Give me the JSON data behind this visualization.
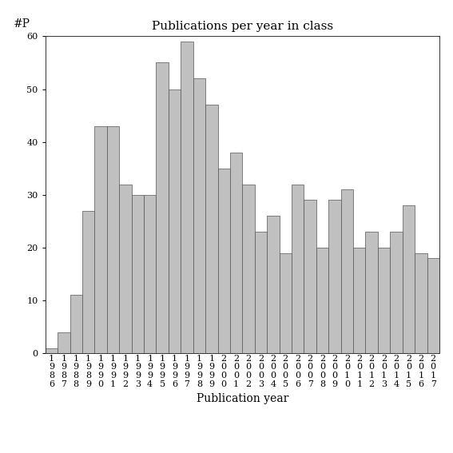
{
  "title": "Publications per year in class",
  "xlabel": "Publication year",
  "ylabel": "#P",
  "years": [
    1986,
    1987,
    1988,
    1989,
    1990,
    1991,
    1992,
    1993,
    1994,
    1995,
    1996,
    1997,
    1998,
    1999,
    2000,
    2001,
    2002,
    2003,
    2004,
    2005,
    2006,
    2007,
    2008,
    2009,
    2010,
    2011,
    2012,
    2013,
    2014,
    2015,
    2016,
    2017
  ],
  "values": [
    1,
    4,
    11,
    27,
    43,
    43,
    32,
    30,
    30,
    55,
    50,
    59,
    52,
    47,
    35,
    38,
    32,
    23,
    26,
    19,
    32,
    29,
    20,
    29,
    31,
    20,
    23,
    20,
    23,
    28,
    19,
    18
  ],
  "bar_color": "#c0c0c0",
  "bar_edgecolor": "#555555",
  "ylim": [
    0,
    60
  ],
  "yticks": [
    0,
    10,
    20,
    30,
    40,
    50,
    60
  ],
  "background_color": "#ffffff",
  "title_fontsize": 11,
  "axis_label_fontsize": 10,
  "tick_fontsize": 8
}
